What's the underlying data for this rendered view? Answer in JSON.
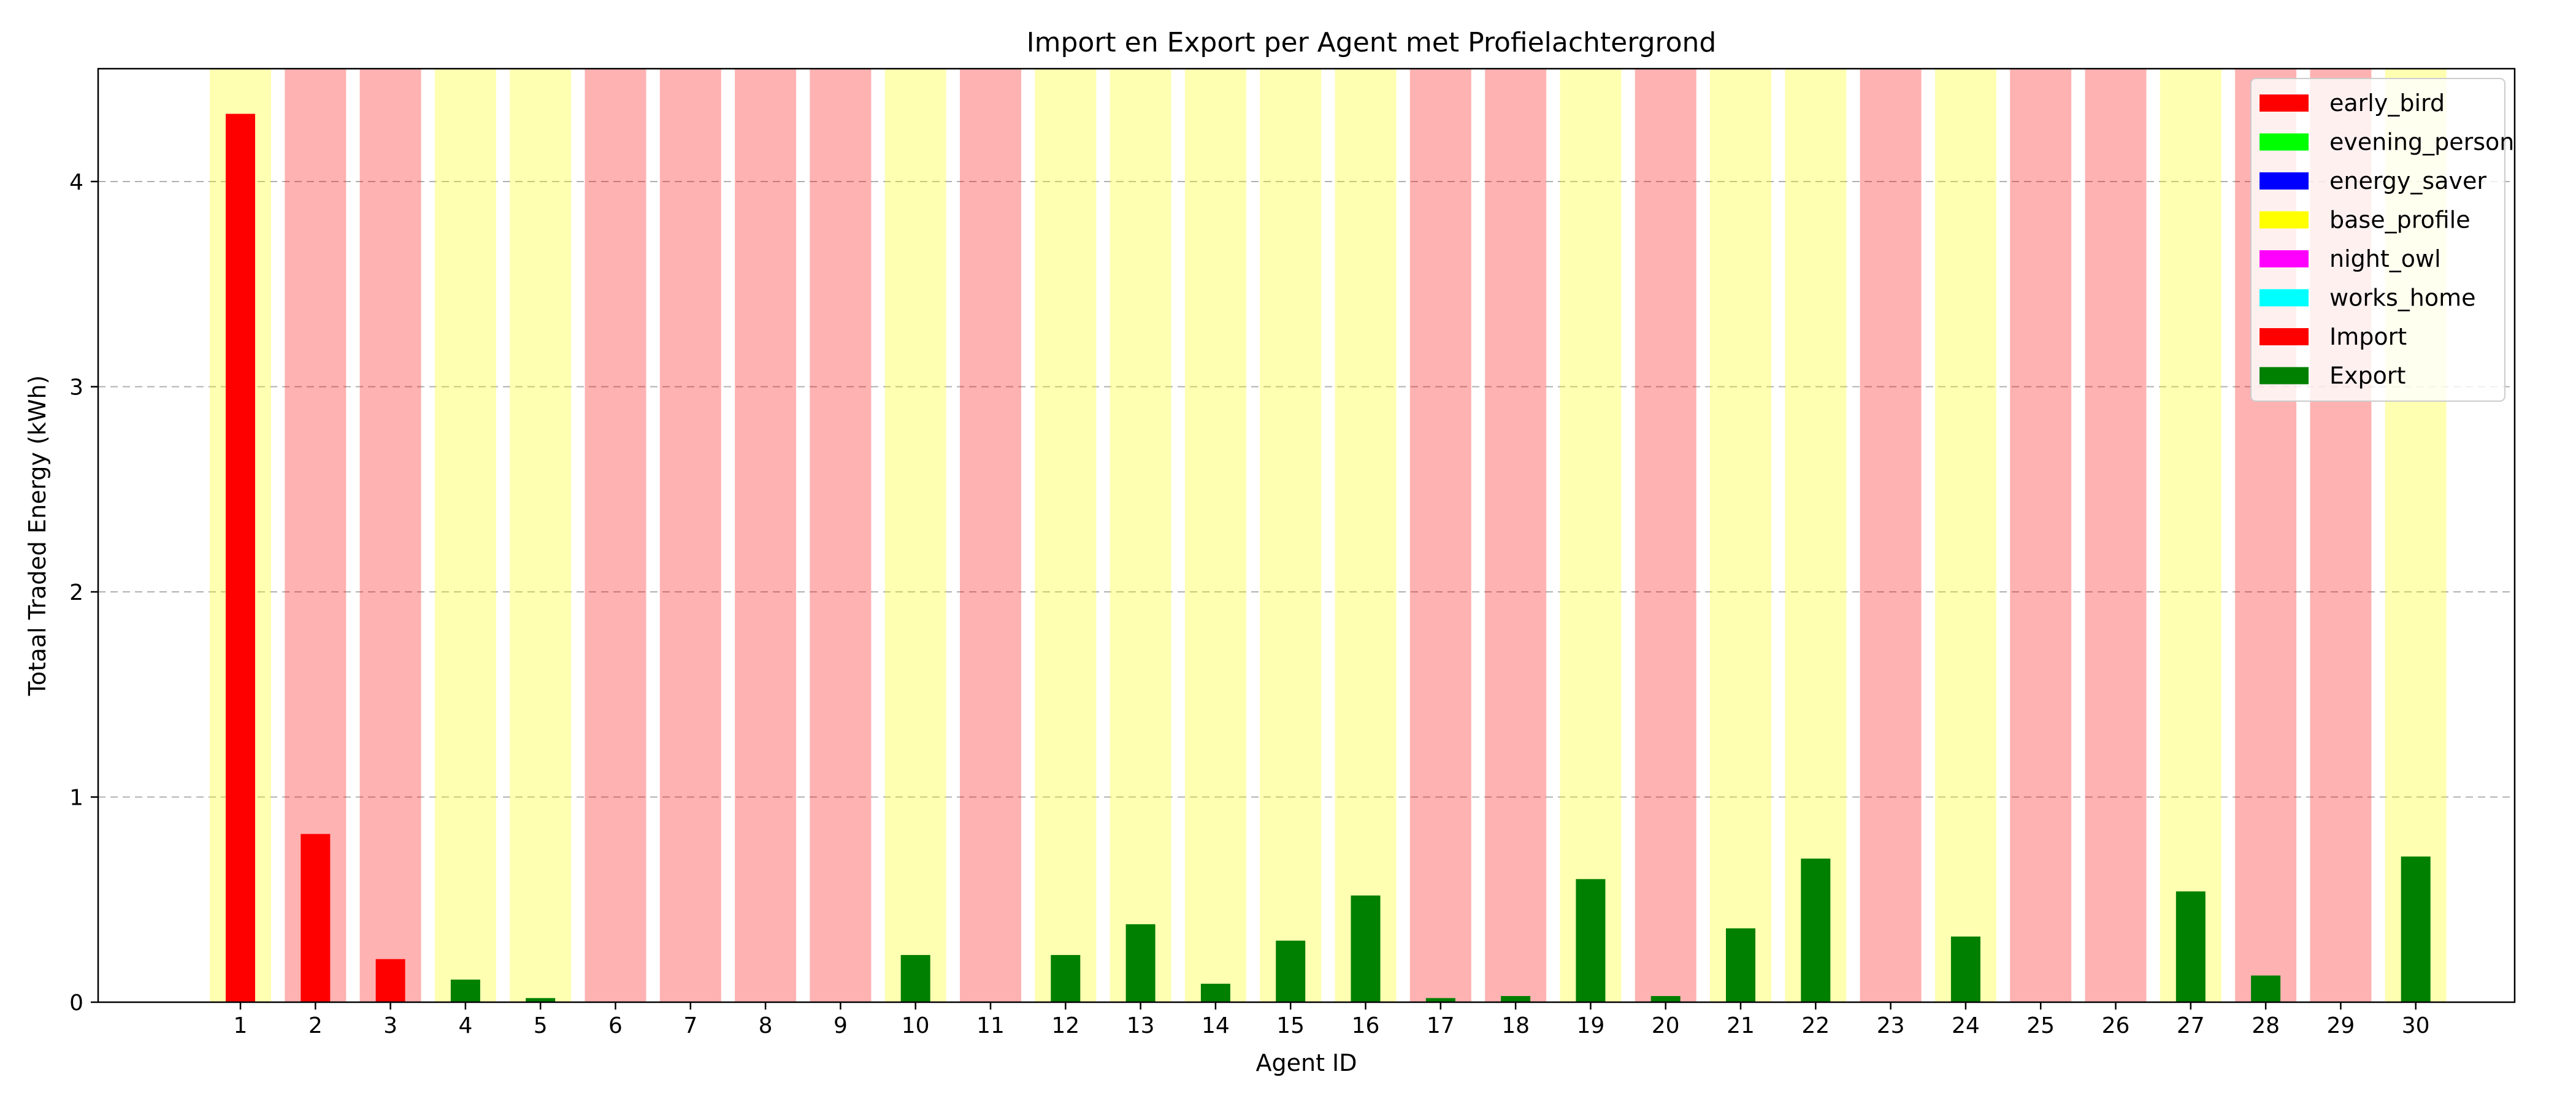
{
  "chart_data": {
    "type": "bar",
    "title": "Import en Export per Agent met Profielachtergrond",
    "xlabel": "Agent ID",
    "ylabel": "Totaal Traded Energy (kWh)",
    "ylim": [
      0,
      4.55
    ],
    "yticks": [
      0,
      1,
      2,
      3,
      4
    ],
    "grid": "y-dashed",
    "legend_position": "top-right",
    "categories": [
      "1",
      "2",
      "3",
      "4",
      "5",
      "6",
      "7",
      "8",
      "9",
      "10",
      "11",
      "12",
      "13",
      "14",
      "15",
      "16",
      "17",
      "18",
      "19",
      "20",
      "21",
      "22",
      "23",
      "24",
      "25",
      "26",
      "27",
      "28",
      "29",
      "30"
    ],
    "profiles": [
      "base_profile",
      "early_bird",
      "early_bird",
      "base_profile",
      "base_profile",
      "early_bird",
      "early_bird",
      "early_bird",
      "early_bird",
      "base_profile",
      "early_bird",
      "base_profile",
      "base_profile",
      "base_profile",
      "base_profile",
      "base_profile",
      "early_bird",
      "early_bird",
      "base_profile",
      "early_bird",
      "base_profile",
      "base_profile",
      "early_bird",
      "base_profile",
      "early_bird",
      "early_bird",
      "base_profile",
      "early_bird",
      "early_bird",
      "base_profile"
    ],
    "series": [
      {
        "name": "Import",
        "color": "#ff0000",
        "values": [
          4.33,
          0.82,
          0.21,
          0,
          0,
          0,
          0,
          0,
          0,
          0,
          0,
          0,
          0,
          0,
          0,
          0,
          0,
          0,
          0,
          0,
          0,
          0,
          0,
          0,
          0,
          0,
          0,
          0,
          0,
          0
        ]
      },
      {
        "name": "Export",
        "color": "#008000",
        "values": [
          0,
          0,
          0,
          0.11,
          0.02,
          0,
          0,
          0,
          0,
          0.23,
          0,
          0.23,
          0.38,
          0.09,
          0.3,
          0.52,
          0.02,
          0.03,
          0.6,
          0.03,
          0.36,
          0.7,
          0,
          0.32,
          0,
          0,
          0.54,
          0.13,
          0,
          0.71
        ]
      }
    ],
    "legend": [
      {
        "label": "early_bird",
        "color": "#ff0000"
      },
      {
        "label": "evening_person",
        "color": "#00ff00"
      },
      {
        "label": "energy_saver",
        "color": "#0000ff"
      },
      {
        "label": "base_profile",
        "color": "#ffff00"
      },
      {
        "label": "night_owl",
        "color": "#ff00ff"
      },
      {
        "label": "works_home",
        "color": "#00ffff"
      },
      {
        "label": "Import",
        "color": "#ff0000"
      },
      {
        "label": "Export",
        "color": "#008000"
      }
    ]
  }
}
